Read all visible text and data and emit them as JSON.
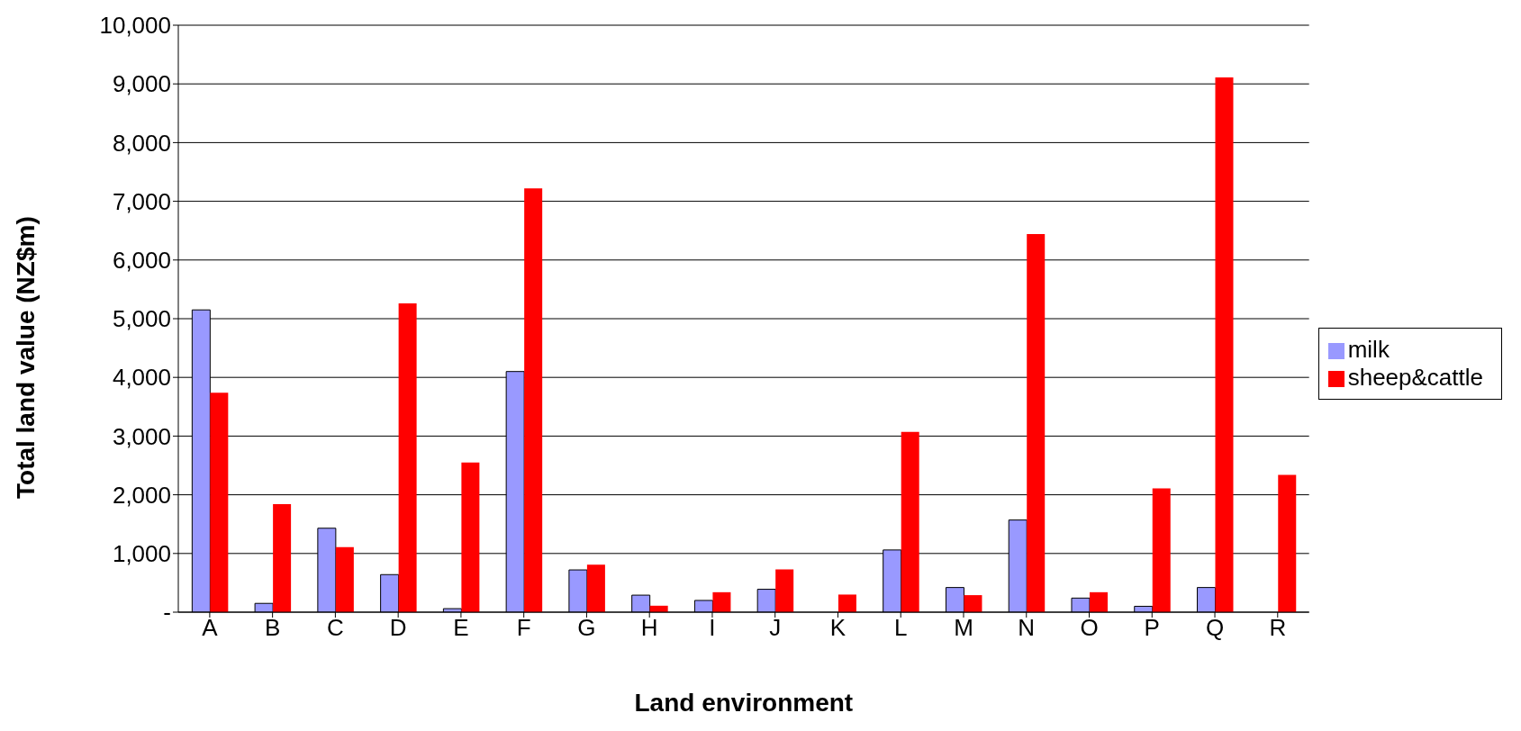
{
  "chart_data": {
    "type": "bar",
    "xlabel": "Land environment",
    "ylabel": "Total land value (NZ$m)",
    "categories": [
      "A",
      "B",
      "C",
      "D",
      "E",
      "F",
      "G",
      "H",
      "I",
      "J",
      "K",
      "L",
      "M",
      "N",
      "O",
      "P",
      "Q",
      "R"
    ],
    "series": [
      {
        "name": "milk",
        "color": "#9999ff",
        "values": [
          5150,
          150,
          1430,
          640,
          60,
          4100,
          720,
          290,
          200,
          390,
          0,
          1060,
          420,
          1570,
          240,
          100,
          420,
          0
        ]
      },
      {
        "name": "sheep&cattle",
        "color": "#ff0000",
        "values": [
          3740,
          1840,
          1110,
          5260,
          2550,
          7220,
          810,
          110,
          340,
          730,
          300,
          3070,
          290,
          6440,
          340,
          2110,
          9110,
          2340
        ]
      }
    ],
    "ylim": [
      0,
      10000
    ],
    "yticks": [
      {
        "value": 0,
        "label": "-"
      },
      {
        "value": 1000,
        "label": "1,000"
      },
      {
        "value": 2000,
        "label": "2,000"
      },
      {
        "value": 3000,
        "label": "3,000"
      },
      {
        "value": 4000,
        "label": "4,000"
      },
      {
        "value": 5000,
        "label": "5,000"
      },
      {
        "value": 6000,
        "label": "6,000"
      },
      {
        "value": 7000,
        "label": "7,000"
      },
      {
        "value": 8000,
        "label": "8,000"
      },
      {
        "value": 9000,
        "label": "9,000"
      },
      {
        "value": 10000,
        "label": "10,000"
      }
    ],
    "grid": "y",
    "legend": "right"
  }
}
